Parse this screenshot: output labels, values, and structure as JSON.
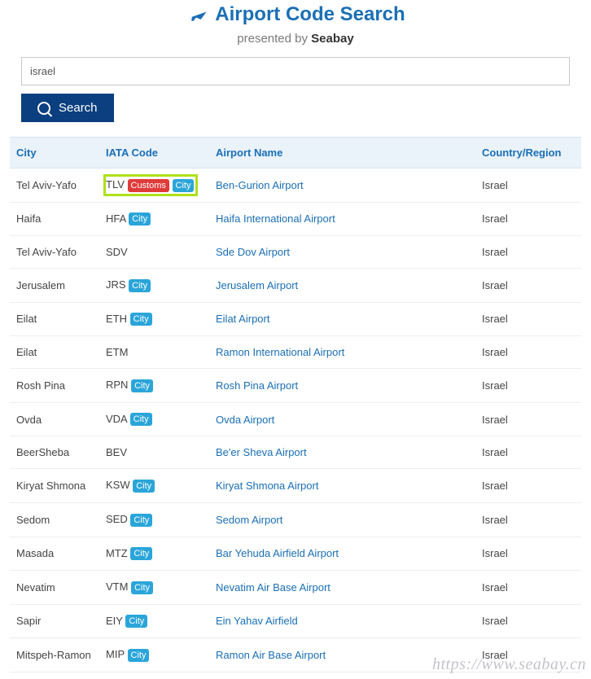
{
  "header": {
    "title": "Airport Code Search",
    "presented_label": "presented by",
    "brand": "Seabay"
  },
  "search": {
    "value": "israel",
    "button_label": "Search"
  },
  "columns": {
    "city": "City",
    "iata": "IATA Code",
    "name": "Airport Name",
    "region": "Country/Region"
  },
  "badges": {
    "customs": "Customs",
    "city": "City"
  },
  "watermark": "https://www.seabay.cn",
  "rows": [
    {
      "city": "Tel Aviv-Yafo",
      "iata": "TLV",
      "customs": true,
      "city_badge": true,
      "highlight": true,
      "name": "Ben-Gurion Airport",
      "region": "Israel"
    },
    {
      "city": "Haifa",
      "iata": "HFA",
      "customs": false,
      "city_badge": true,
      "highlight": false,
      "name": "Haifa International Airport",
      "region": "Israel"
    },
    {
      "city": "Tel Aviv-Yafo",
      "iata": "SDV",
      "customs": false,
      "city_badge": false,
      "highlight": false,
      "name": "Sde Dov Airport",
      "region": "Israel"
    },
    {
      "city": "Jerusalem",
      "iata": "JRS",
      "customs": false,
      "city_badge": true,
      "highlight": false,
      "name": "Jerusalem Airport",
      "region": "Israel"
    },
    {
      "city": "Eilat",
      "iata": "ETH",
      "customs": false,
      "city_badge": true,
      "highlight": false,
      "name": "Eilat Airport",
      "region": "Israel"
    },
    {
      "city": "Eilat",
      "iata": "ETM",
      "customs": false,
      "city_badge": false,
      "highlight": false,
      "name": "Ramon International Airport",
      "region": "Israel"
    },
    {
      "city": "Rosh Pina",
      "iata": "RPN",
      "customs": false,
      "city_badge": true,
      "highlight": false,
      "name": "Rosh Pina Airport",
      "region": "Israel"
    },
    {
      "city": "Ovda",
      "iata": "VDA",
      "customs": false,
      "city_badge": true,
      "highlight": false,
      "name": "Ovda Airport",
      "region": "Israel"
    },
    {
      "city": "BeerSheba",
      "iata": "BEV",
      "customs": false,
      "city_badge": false,
      "highlight": false,
      "name": "Be'er Sheva Airport",
      "region": "Israel"
    },
    {
      "city": "Kiryat Shmona",
      "iata": "KSW",
      "customs": false,
      "city_badge": true,
      "highlight": false,
      "name": "Kiryat Shmona Airport",
      "region": "Israel"
    },
    {
      "city": "Sedom",
      "iata": "SED",
      "customs": false,
      "city_badge": true,
      "highlight": false,
      "name": "Sedom Airport",
      "region": "Israel"
    },
    {
      "city": "Masada",
      "iata": "MTZ",
      "customs": false,
      "city_badge": true,
      "highlight": false,
      "name": "Bar Yehuda Airfield Airport",
      "region": "Israel"
    },
    {
      "city": "Nevatim",
      "iata": "VTM",
      "customs": false,
      "city_badge": true,
      "highlight": false,
      "name": "Nevatim Air Base Airport",
      "region": "Israel"
    },
    {
      "city": "Sapir",
      "iata": "EIY",
      "customs": false,
      "city_badge": true,
      "highlight": false,
      "name": "Ein Yahav Airfield",
      "region": "Israel"
    },
    {
      "city": "Mitspeh-Ramon",
      "iata": "MIP",
      "customs": false,
      "city_badge": true,
      "highlight": false,
      "name": "Ramon Air Base Airport",
      "region": "Israel"
    }
  ]
}
